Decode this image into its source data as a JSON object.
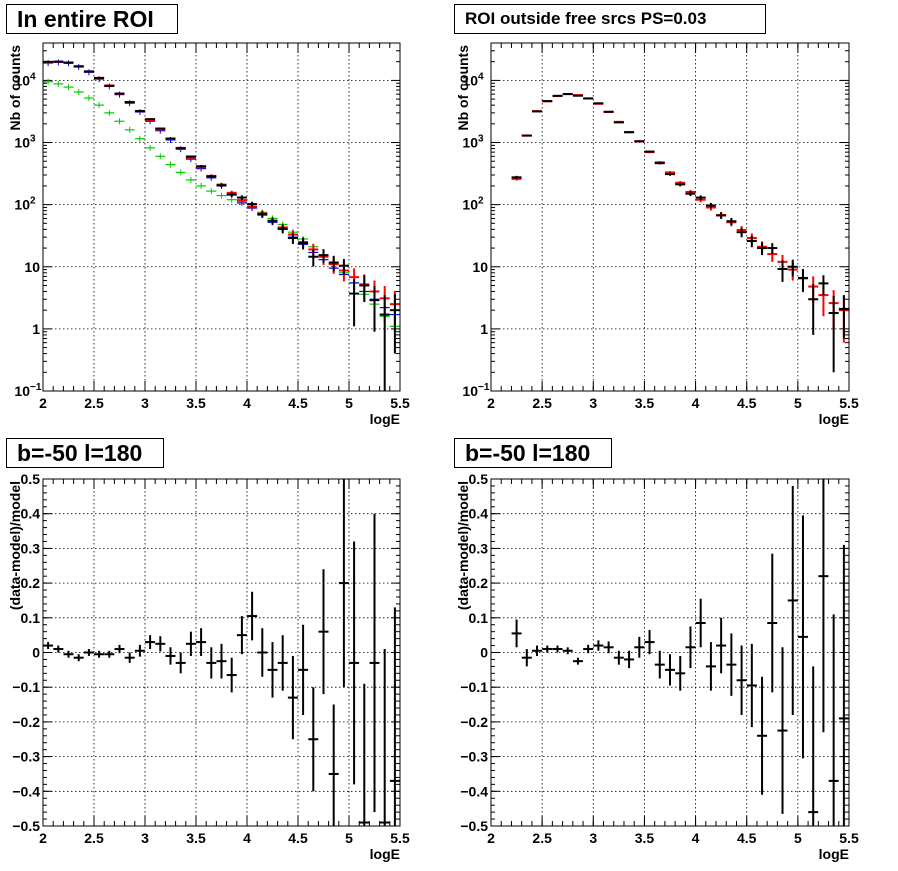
{
  "chart_data": [
    {
      "type": "scatter",
      "title": "In entire ROI",
      "xlabel": "logE",
      "ylabel": "Nb of counts",
      "xlim": [
        2,
        5.5
      ],
      "ylim": [
        0.1,
        40000
      ],
      "log_y": true,
      "grid": true,
      "x_ticks": [
        "2",
        "2.5",
        "3",
        "3.5",
        "4",
        "4.5",
        "5",
        "5.5"
      ],
      "y_ticks": [
        {
          "v": 0.1,
          "base": "10",
          "exp": "−1"
        },
        {
          "v": 1,
          "base": "1",
          "exp": ""
        },
        {
          "v": 10,
          "base": "10",
          "exp": ""
        },
        {
          "v": 100,
          "base": "10",
          "exp": "2"
        },
        {
          "v": 1000,
          "base": "10",
          "exp": "3"
        },
        {
          "v": 10000,
          "base": "10",
          "exp": "4"
        }
      ],
      "series": [
        {
          "color": "#00cc00",
          "x": [
            2.05,
            2.15,
            2.25,
            2.35,
            2.45,
            2.55,
            2.65,
            2.75,
            2.85,
            2.95,
            3.05,
            3.15,
            3.25,
            3.35,
            3.45,
            3.55,
            3.65,
            3.75,
            3.85,
            3.95,
            4.05,
            4.15,
            4.25,
            4.35,
            4.45,
            4.55,
            4.65,
            4.75,
            4.85,
            4.95,
            5.05,
            5.15,
            5.25,
            5.35,
            5.45
          ],
          "values": [
            9500,
            8800,
            7800,
            6500,
            5200,
            4000,
            3000,
            2200,
            1600,
            1150,
            820,
            600,
            440,
            330,
            250,
            200,
            165,
            140,
            120,
            105,
            90,
            75,
            60,
            48,
            36,
            28,
            21,
            15,
            11,
            8,
            5.5,
            3.6,
            2.5,
            1.6,
            1.1
          ]
        },
        {
          "color": "#0000ff",
          "x": [
            2.05,
            2.15,
            2.25,
            2.35,
            2.45,
            2.55,
            2.65,
            2.75,
            2.85,
            2.95,
            3.05,
            3.15,
            3.25,
            3.35,
            3.45,
            3.55,
            3.65,
            3.75,
            3.85,
            3.95,
            4.05,
            4.15,
            4.25,
            4.35,
            4.45,
            4.55,
            4.65,
            4.75,
            4.85,
            4.95,
            5.05,
            5.15,
            5.25,
            5.35,
            5.45
          ],
          "values": [
            19000,
            19500,
            19000,
            16500,
            13500,
            10500,
            8000,
            5900,
            4300,
            3100,
            2200,
            1550,
            1100,
            780,
            540,
            380,
            270,
            200,
            145,
            110,
            88,
            68,
            52,
            40,
            30,
            23,
            17,
            13,
            9.5,
            7.5,
            5.5,
            4,
            3,
            2.2,
            1.7
          ]
        },
        {
          "color": "#ff0000",
          "x": [
            2.05,
            2.15,
            2.25,
            2.35,
            2.45,
            2.55,
            2.65,
            2.75,
            2.85,
            2.95,
            3.05,
            3.15,
            3.25,
            3.35,
            3.45,
            3.55,
            3.65,
            3.75,
            3.85,
            3.95,
            4.05,
            4.15,
            4.25,
            4.35,
            4.45,
            4.55,
            4.65,
            4.75,
            4.85,
            4.95,
            5.05,
            5.15,
            5.25,
            5.35,
            5.45
          ],
          "values": [
            19500,
            20000,
            19500,
            17000,
            14000,
            11000,
            8300,
            6100,
            4500,
            3200,
            2300,
            1620,
            1150,
            820,
            570,
            400,
            290,
            210,
            155,
            118,
            93,
            72,
            55,
            43,
            33,
            25,
            19,
            14.5,
            11,
            8.7,
            6.8,
            5.2,
            4,
            3.1,
            2.5
          ],
          "err": [
            140,
            140,
            140,
            130,
            120,
            105,
            90,
            78,
            67,
            57,
            48,
            40,
            34,
            29,
            24,
            20,
            17,
            14.5,
            12.5,
            11,
            9.6,
            8.5,
            7.4,
            6.6,
            5.7,
            5,
            4.4,
            3.8,
            3.3,
            2.9,
            2.6,
            2.3,
            2,
            1.8,
            1.6
          ]
        },
        {
          "color": "#000000",
          "x": [
            2.05,
            2.15,
            2.25,
            2.35,
            2.45,
            2.55,
            2.65,
            2.75,
            2.85,
            2.95,
            3.05,
            3.15,
            3.25,
            3.35,
            3.45,
            3.55,
            3.65,
            3.75,
            3.85,
            3.95,
            4.05,
            4.15,
            4.25,
            4.35,
            4.45,
            4.55,
            4.65,
            4.75,
            4.85,
            4.95,
            5.05,
            5.15,
            5.25,
            5.35,
            5.45
          ],
          "values": [
            19900,
            20100,
            19200,
            16700,
            13900,
            10900,
            8150,
            6150,
            4460,
            3220,
            2380,
            1680,
            1160,
            810,
            595,
            415,
            285,
            205,
            145,
            130,
            102,
            70,
            55,
            41,
            29,
            24,
            14.5,
            15.4,
            11.7,
            10.4,
            3.7,
            5,
            2.9,
            1.7,
            2
          ],
          "err": [
            140,
            140,
            140,
            130,
            120,
            105,
            90,
            78,
            67,
            57,
            48,
            40,
            34,
            29,
            24,
            20,
            17,
            14.5,
            12.5,
            11,
            9.6,
            8.5,
            7.4,
            6.6,
            5.7,
            5,
            4.4,
            3.8,
            3.3,
            2.9,
            2.6,
            2.3,
            2,
            1.8,
            1.6
          ]
        }
      ]
    },
    {
      "type": "scatter",
      "title": "ROI outside free srcs PS=0.03",
      "xlabel": "logE",
      "ylabel": "Nb of counts",
      "xlim": [
        2,
        5.5
      ],
      "ylim": [
        0.1,
        40000
      ],
      "log_y": true,
      "grid": true,
      "x_ticks": [
        "2",
        "2.5",
        "3",
        "3.5",
        "4",
        "4.5",
        "5",
        "5.5"
      ],
      "y_ticks": [
        {
          "v": 0.1,
          "base": "10",
          "exp": "−1"
        },
        {
          "v": 1,
          "base": "1",
          "exp": ""
        },
        {
          "v": 10,
          "base": "10",
          "exp": ""
        },
        {
          "v": 100,
          "base": "10",
          "exp": "2"
        },
        {
          "v": 1000,
          "base": "10",
          "exp": "3"
        },
        {
          "v": 10000,
          "base": "10",
          "exp": "4"
        }
      ],
      "series": [
        {
          "color": "#ff0000",
          "x": [
            2.25,
            2.35,
            2.45,
            2.55,
            2.65,
            2.75,
            2.85,
            2.95,
            3.05,
            3.15,
            3.25,
            3.35,
            3.45,
            3.55,
            3.65,
            3.75,
            3.85,
            3.95,
            4.05,
            4.15,
            4.25,
            4.35,
            4.45,
            4.55,
            4.65,
            4.75,
            4.85,
            4.95,
            5.05,
            5.15,
            5.25,
            5.35,
            5.45
          ],
          "values": [
            260,
            1300,
            3200,
            4600,
            5600,
            6000,
            5800,
            5100,
            4200,
            3100,
            2150,
            1480,
            1040,
            700,
            480,
            330,
            225,
            160,
            120,
            90,
            68,
            52,
            39,
            29,
            21,
            16,
            12,
            9,
            6.5,
            4.8,
            3.5,
            2.6,
            2
          ],
          "err": [
            16,
            36,
            57,
            68,
            75,
            77,
            76,
            71,
            65,
            56,
            46,
            38,
            32,
            26,
            22,
            18,
            15,
            12.6,
            11,
            9.5,
            8.2,
            7.2,
            6.2,
            5.4,
            4.6,
            4,
            3.5,
            3,
            2.6,
            2.2,
            1.9,
            1.6,
            1.4
          ]
        },
        {
          "color": "#000000",
          "x": [
            2.25,
            2.35,
            2.45,
            2.55,
            2.65,
            2.75,
            2.85,
            2.95,
            3.05,
            3.15,
            3.25,
            3.35,
            3.45,
            3.55,
            3.65,
            3.75,
            3.85,
            3.95,
            4.05,
            4.15,
            4.25,
            4.35,
            4.45,
            4.55,
            4.65,
            4.75,
            4.85,
            4.95,
            5.05,
            5.15,
            5.25,
            5.35,
            5.45
          ],
          "values": [
            275,
            1290,
            3170,
            4650,
            5650,
            6040,
            5670,
            5140,
            4280,
            3130,
            2110,
            1460,
            1050,
            715,
            465,
            310,
            212,
            150,
            130,
            97,
            67,
            54,
            36,
            26,
            20,
            20,
            9.2,
            10,
            6.6,
            3,
            5.4,
            1.8,
            2.1
          ],
          "err": [
            16,
            36,
            57,
            68,
            75,
            77,
            76,
            71,
            65,
            56,
            46,
            38,
            32,
            26,
            22,
            18,
            15,
            12.6,
            11,
            9.5,
            8.2,
            7.2,
            6.2,
            5.4,
            4.6,
            4,
            3.5,
            3,
            2.6,
            2.2,
            1.9,
            1.6,
            1.4
          ]
        }
      ]
    },
    {
      "type": "scatter",
      "title": "b=-50 l=180",
      "xlabel": "logE",
      "ylabel": "(data-model)/model",
      "xlim": [
        2,
        5.5
      ],
      "ylim": [
        -0.5,
        0.5
      ],
      "log_y": false,
      "grid": true,
      "x_ticks": [
        "2",
        "2.5",
        "3",
        "3.5",
        "4",
        "4.5",
        "5",
        "5.5"
      ],
      "y_ticks": [
        {
          "v": -0.5,
          "base": "−0.5",
          "exp": ""
        },
        {
          "v": -0.4,
          "base": "−0.4",
          "exp": ""
        },
        {
          "v": -0.3,
          "base": "−0.3",
          "exp": ""
        },
        {
          "v": -0.2,
          "base": "−0.2",
          "exp": ""
        },
        {
          "v": -0.1,
          "base": "−0.1",
          "exp": ""
        },
        {
          "v": 0,
          "base": "0",
          "exp": ""
        },
        {
          "v": 0.1,
          "base": "0.1",
          "exp": ""
        },
        {
          "v": 0.2,
          "base": "0.2",
          "exp": ""
        },
        {
          "v": 0.3,
          "base": "0.3",
          "exp": ""
        },
        {
          "v": 0.4,
          "base": "0.4",
          "exp": ""
        },
        {
          "v": 0.5,
          "base": "0.5",
          "exp": ""
        }
      ],
      "series": [
        {
          "color": "#000000",
          "x": [
            2.05,
            2.15,
            2.25,
            2.35,
            2.45,
            2.55,
            2.65,
            2.75,
            2.85,
            2.95,
            3.05,
            3.15,
            3.25,
            3.35,
            3.45,
            3.55,
            3.65,
            3.75,
            3.85,
            3.95,
            4.05,
            4.15,
            4.25,
            4.35,
            4.45,
            4.55,
            4.65,
            4.75,
            4.85,
            4.95,
            5.05,
            5.15,
            5.25,
            5.35,
            5.45
          ],
          "values": [
            0.02,
            0.01,
            -0.005,
            -0.015,
            0,
            -0.005,
            -0.005,
            0.01,
            -0.015,
            0.005,
            0.03,
            0.025,
            -0.01,
            -0.03,
            0.025,
            0.03,
            -0.03,
            -0.025,
            -0.065,
            0.05,
            0.105,
            0,
            -0.05,
            -0.03,
            -0.13,
            -0.05,
            -0.25,
            0.06,
            -0.35,
            0.2,
            -0.03,
            -0.49,
            -0.03,
            -0.49,
            -0.37
          ],
          "err": [
            0.01,
            0.01,
            0.01,
            0.01,
            0.01,
            0.01,
            0.01,
            0.012,
            0.015,
            0.017,
            0.02,
            0.022,
            0.025,
            0.03,
            0.035,
            0.04,
            0.045,
            0.05,
            0.05,
            0.055,
            0.07,
            0.07,
            0.08,
            0.08,
            0.12,
            0.13,
            0.15,
            0.18,
            0.2,
            0.3,
            0.35,
            0.4,
            0.43,
            0.5,
            0.5
          ]
        }
      ]
    },
    {
      "type": "scatter",
      "title": "b=-50 l=180",
      "xlabel": "logE",
      "ylabel": "(data-model)/model",
      "xlim": [
        2,
        5.5
      ],
      "ylim": [
        -0.5,
        0.5
      ],
      "log_y": false,
      "grid": true,
      "x_ticks": [
        "2",
        "2.5",
        "3",
        "3.5",
        "4",
        "4.5",
        "5",
        "5.5"
      ],
      "y_ticks": [
        {
          "v": -0.5,
          "base": "−0.5",
          "exp": ""
        },
        {
          "v": -0.4,
          "base": "−0.4",
          "exp": ""
        },
        {
          "v": -0.3,
          "base": "−0.3",
          "exp": ""
        },
        {
          "v": -0.2,
          "base": "−0.2",
          "exp": ""
        },
        {
          "v": -0.1,
          "base": "−0.1",
          "exp": ""
        },
        {
          "v": 0,
          "base": "0",
          "exp": ""
        },
        {
          "v": 0.1,
          "base": "0.1",
          "exp": ""
        },
        {
          "v": 0.2,
          "base": "0.2",
          "exp": ""
        },
        {
          "v": 0.3,
          "base": "0.3",
          "exp": ""
        },
        {
          "v": 0.4,
          "base": "0.4",
          "exp": ""
        },
        {
          "v": 0.5,
          "base": "0.5",
          "exp": ""
        }
      ],
      "series": [
        {
          "color": "#000000",
          "x": [
            2.25,
            2.35,
            2.45,
            2.55,
            2.65,
            2.75,
            2.85,
            2.95,
            3.05,
            3.15,
            3.25,
            3.35,
            3.45,
            3.55,
            3.65,
            3.75,
            3.85,
            3.95,
            4.05,
            4.15,
            4.25,
            4.35,
            4.45,
            4.55,
            4.65,
            4.75,
            4.85,
            4.95,
            5.05,
            5.15,
            5.25,
            5.35,
            5.45
          ],
          "values": [
            0.055,
            -0.015,
            0.005,
            0.01,
            0.01,
            0.005,
            -0.025,
            0.01,
            0.02,
            0.015,
            -0.015,
            -0.02,
            0.015,
            0.03,
            -0.035,
            -0.05,
            -0.06,
            0.015,
            0.085,
            -0.04,
            0.02,
            -0.035,
            -0.08,
            -0.095,
            -0.24,
            0.085,
            -0.225,
            0.15,
            0.045,
            -0.46,
            0.22,
            -0.37,
            -0.19
          ],
          "err": [
            0.04,
            0.025,
            0.015,
            0.01,
            0.01,
            0.01,
            0.01,
            0.012,
            0.015,
            0.017,
            0.02,
            0.025,
            0.03,
            0.035,
            0.04,
            0.045,
            0.05,
            0.06,
            0.07,
            0.07,
            0.08,
            0.09,
            0.1,
            0.12,
            0.17,
            0.2,
            0.24,
            0.33,
            0.35,
            0.42,
            0.45,
            0.48,
            0.5
          ]
        }
      ]
    }
  ]
}
